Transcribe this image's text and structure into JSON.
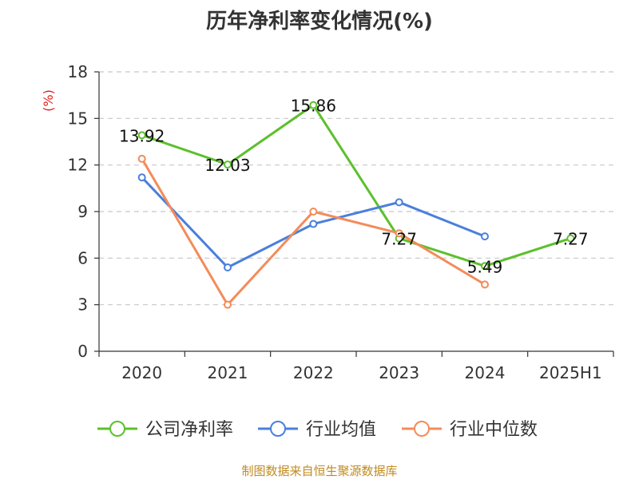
{
  "chart_data": {
    "type": "line",
    "title": "历年净利率变化情况(%)",
    "ylabel": "(%)",
    "categories": [
      "2020",
      "2021",
      "2022",
      "2023",
      "2024",
      "2025H1"
    ],
    "ylim": [
      0,
      18
    ],
    "yticks": [
      0,
      3,
      6,
      9,
      12,
      15,
      18
    ],
    "grid": true,
    "legend_position": "bottom",
    "series": [
      {
        "name": "公司净利率",
        "color": "#5cc02c",
        "values": [
          13.92,
          12.03,
          15.86,
          7.27,
          5.49,
          7.27
        ],
        "labels": [
          "13.92",
          "12.03",
          "15.86",
          "7.27",
          "5.49",
          "7.27"
        ]
      },
      {
        "name": "行业均值",
        "color": "#4a7fdc",
        "values": [
          11.2,
          5.4,
          8.2,
          9.6,
          7.4,
          null
        ],
        "labels": null
      },
      {
        "name": "行业中位数",
        "color": "#f48b5a",
        "values": [
          12.4,
          3.0,
          9.0,
          7.6,
          4.3,
          null
        ],
        "labels": null
      }
    ]
  },
  "footer": {
    "source": "制图数据来自恒生聚源数据库"
  }
}
